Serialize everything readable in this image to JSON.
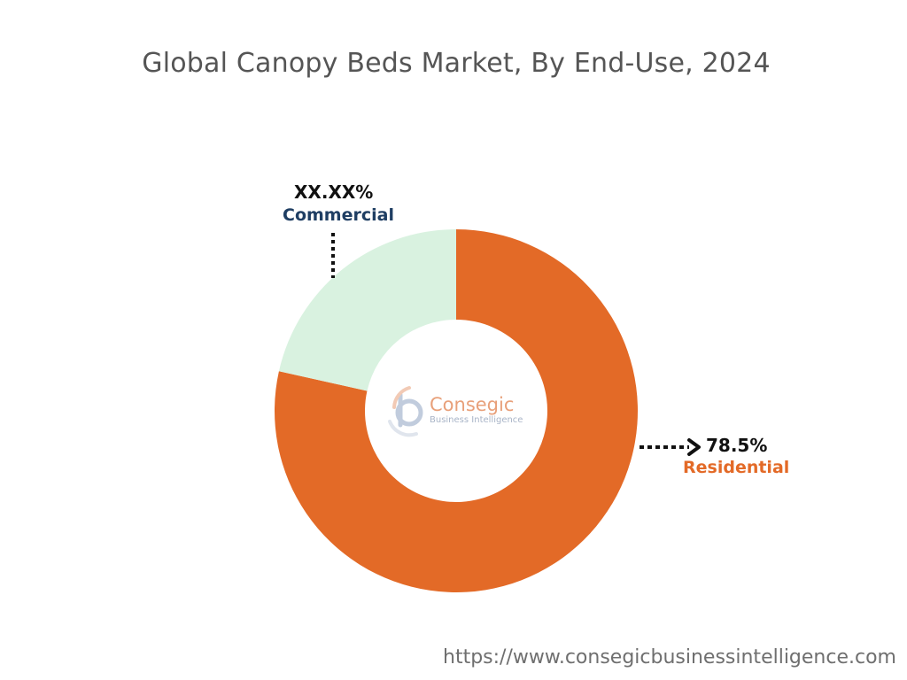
{
  "chart_data": {
    "type": "pie",
    "donut": true,
    "title": "Global Canopy Beds Market, By End-Use, 2024",
    "slices": [
      {
        "label": "Residential",
        "value": 78.5,
        "display": "78.5%",
        "color": "#e36a27"
      },
      {
        "label": "Commercial",
        "value": 21.5,
        "display": "XX.XX%",
        "color": "#d9f2e0",
        "label_color": "#1f3e63"
      }
    ],
    "start": "12 o'clock",
    "direction": "clockwise",
    "legend": "none"
  },
  "watermark": {
    "brand": "Consegic",
    "tagline": "Business Intelligence"
  },
  "footer": {
    "url": "https://www.consegicbusinessintelligence.com"
  }
}
